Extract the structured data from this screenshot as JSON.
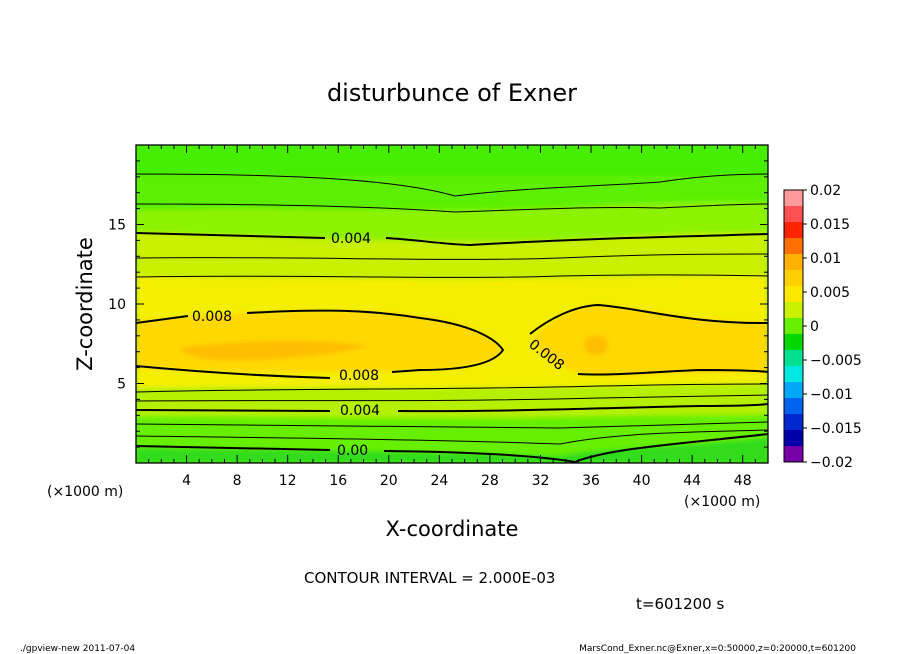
{
  "chart_data": {
    "type": "heatmap",
    "title": "disturbunce of Exner",
    "xlabel": "X-coordinate",
    "ylabel": "Z-coordinate",
    "x_unit_left": "(×1000 m)",
    "x_unit_right": "(×1000 m)",
    "xlim": [
      0,
      50
    ],
    "ylim": [
      0,
      20
    ],
    "x_ticks": [
      "4",
      "8",
      "12",
      "16",
      "20",
      "24",
      "28",
      "32",
      "36",
      "40",
      "44",
      "48"
    ],
    "y_ticks": [
      "5",
      "10",
      "15"
    ],
    "contour_labels": [
      "0.004",
      "0.008",
      "0.008",
      "0.008",
      "0.004",
      "0.00"
    ],
    "contour_interval_text": "CONTOUR INTERVAL = 2.000E-03",
    "time_text": "t=601200 s",
    "colorbar": {
      "labels": [
        "0.02",
        "0.015",
        "0.01",
        "0.005",
        "0",
        "−0.005",
        "−0.01",
        "−0.015",
        "−0.02"
      ],
      "colors": [
        "#ff9a9a",
        "#ff5050",
        "#ff2400",
        "#ff7000",
        "#ffb000",
        "#ffd000",
        "#ffe800",
        "#c8f000",
        "#66f000",
        "#00d800",
        "#00e090",
        "#00e8e0",
        "#00a8f8",
        "#0064f0",
        "#0028d0",
        "#0000a8",
        "#7800a8"
      ]
    },
    "footer_left": "./gpview-new  2011-07-04",
    "footer_right": "MarsCond_Exner.nc@Exner,x=0:50000,z=0:20000,t=601200"
  }
}
